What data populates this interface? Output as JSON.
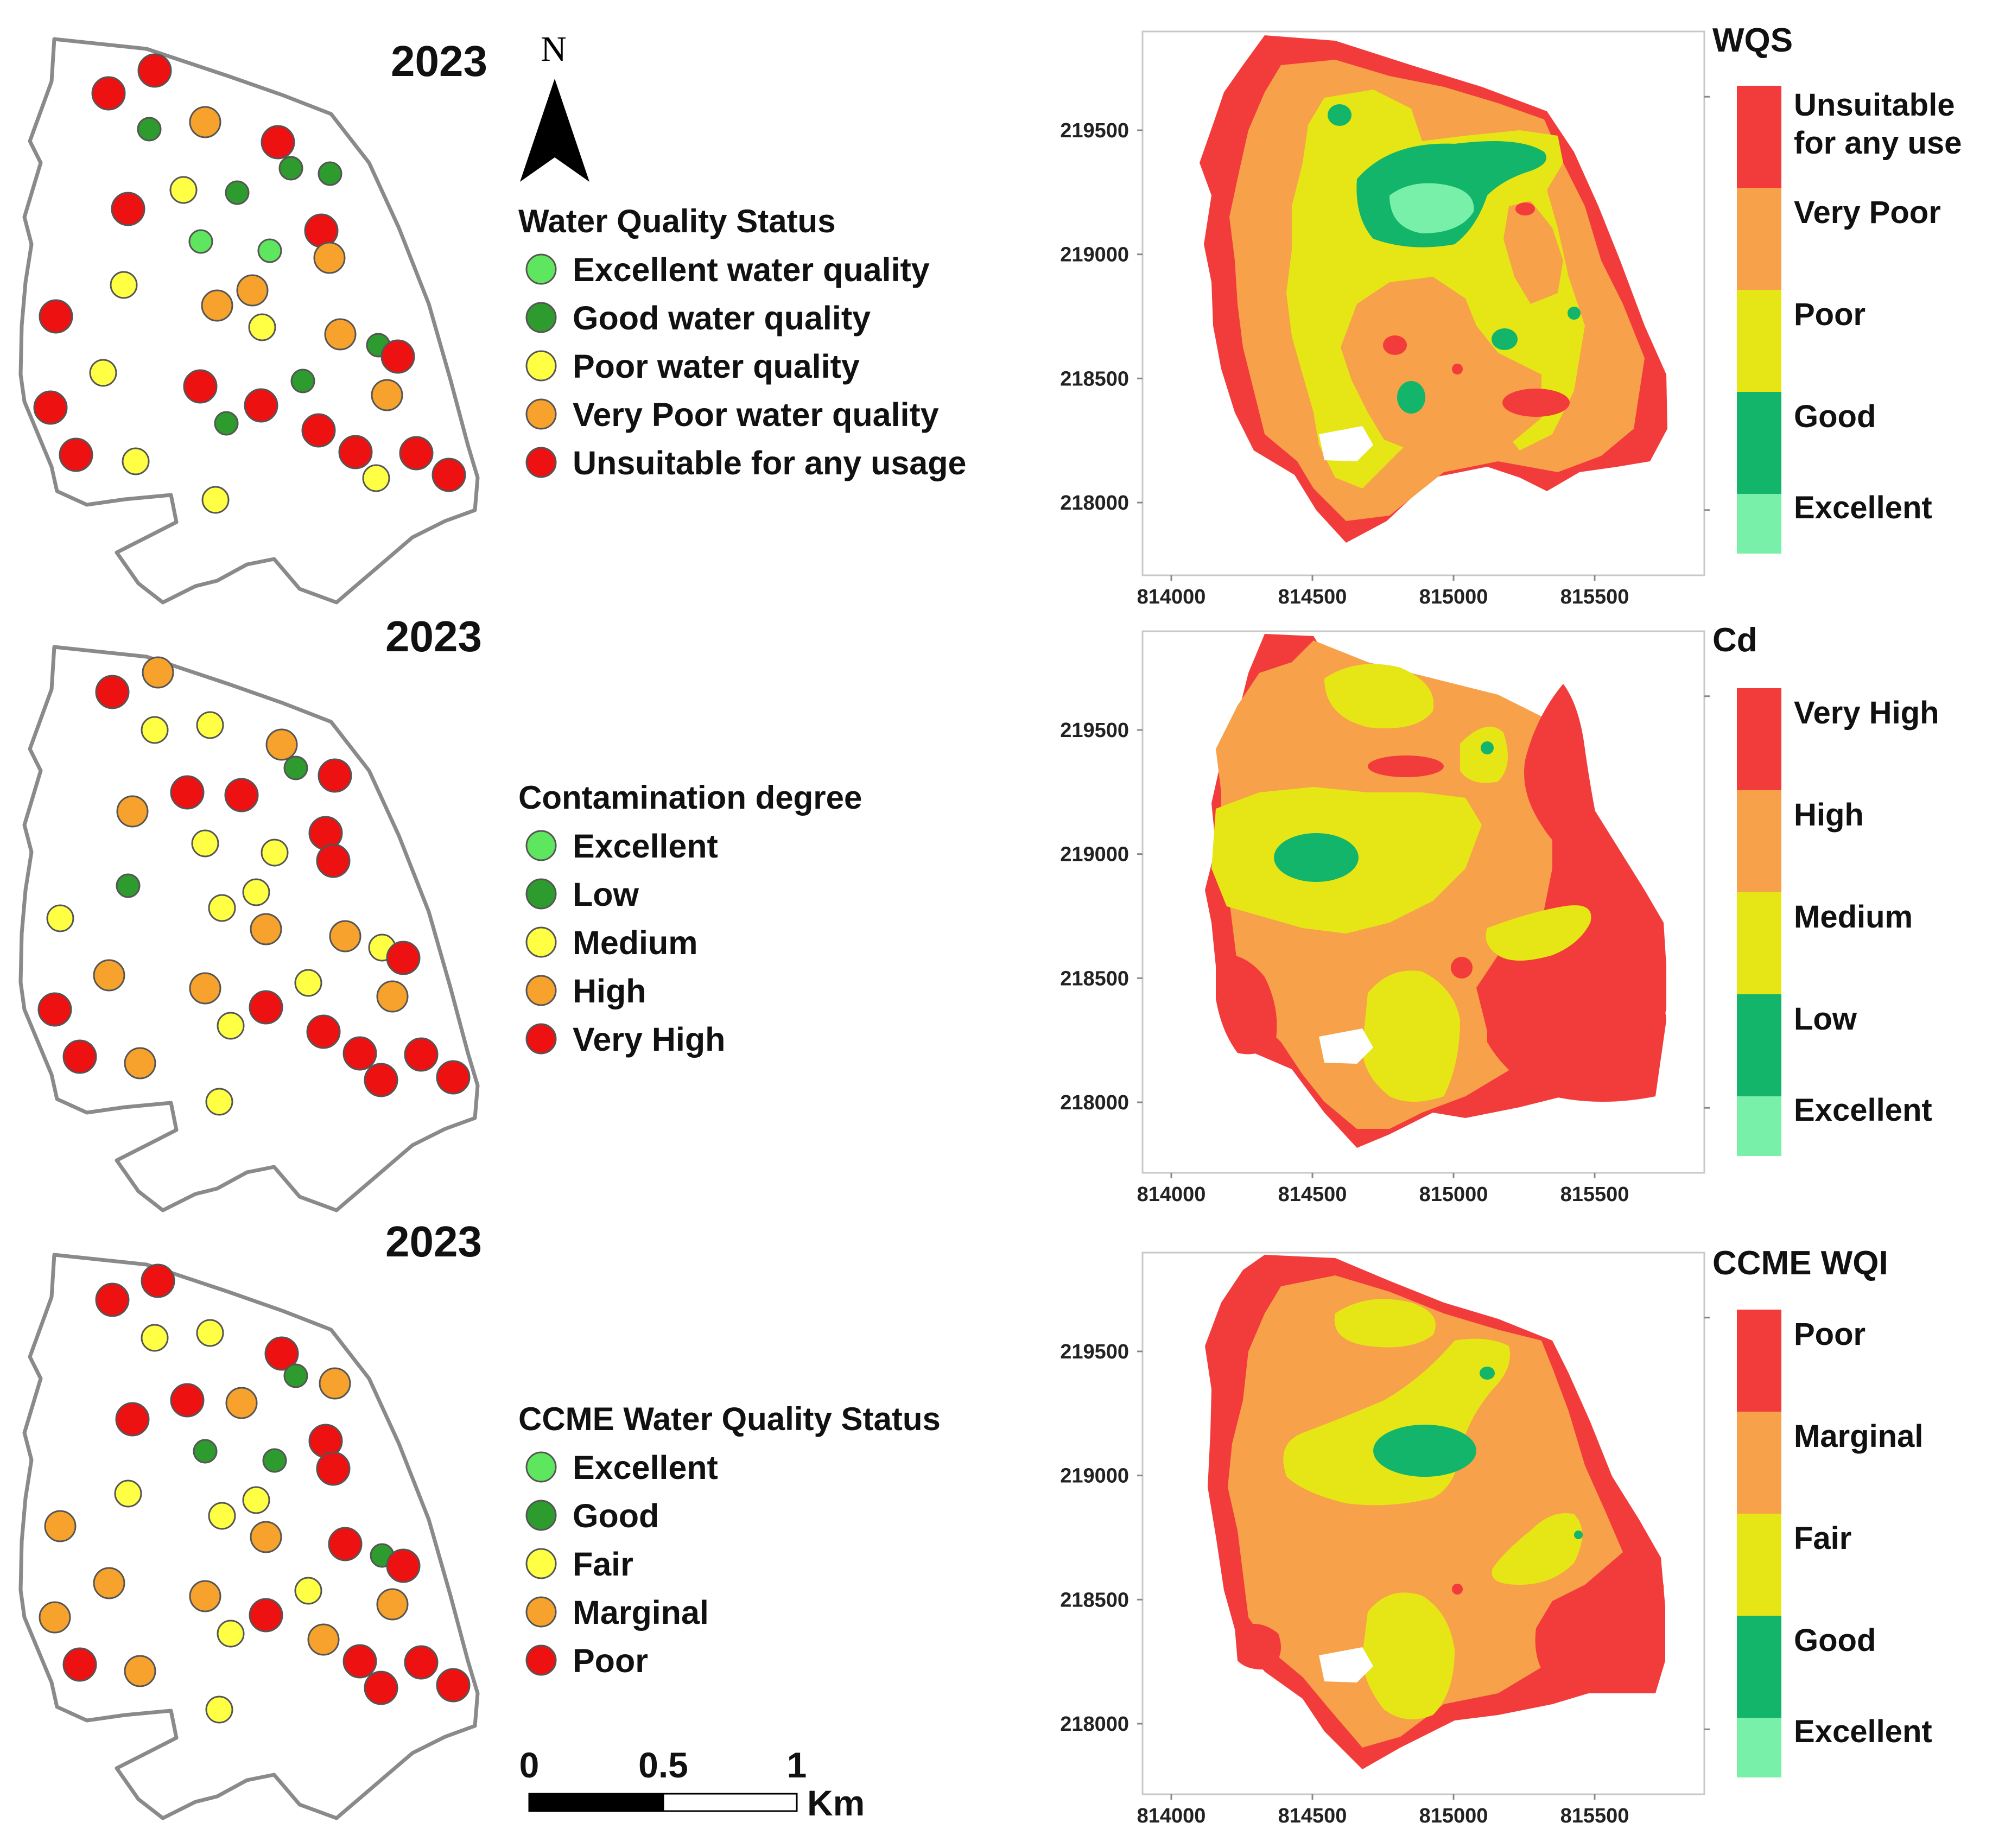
{
  "colors": {
    "excellent": "#5ee65e",
    "good": "#2e9b2e",
    "poor_yellow": "#ffff44",
    "very_poor": "#f6a22c",
    "unsuitable": "#ee1111",
    "ramp_red": "#f23c3c",
    "ramp_orange": "#f7a14a",
    "ramp_yellow": "#e6e617",
    "ramp_green": "#12b56a",
    "ramp_light": "#79f0a9"
  },
  "north_arrow": {
    "label": "N"
  },
  "scale_bar": {
    "labels": [
      "0",
      "0.5",
      "1"
    ],
    "unit": "Km"
  },
  "map_panels": [
    {
      "year": "2023",
      "legend_title": "Water Quality Status",
      "legend": [
        {
          "label": "Excellent water quality",
          "class": "excellent"
        },
        {
          "label": "Good water quality",
          "class": "good"
        },
        {
          "label": "Poor water quality",
          "class": "poor_yellow"
        },
        {
          "label": "Very Poor water quality",
          "class": "very_poor"
        },
        {
          "label": "Unsuitable for any usage",
          "class": "unsuitable"
        }
      ]
    },
    {
      "year": "2023",
      "legend_title": "Contamination degree",
      "legend": [
        {
          "label": "Excellent",
          "class": "excellent"
        },
        {
          "label": "Low",
          "class": "good"
        },
        {
          "label": "Medium",
          "class": "poor_yellow"
        },
        {
          "label": "High",
          "class": "very_poor"
        },
        {
          "label": "Very High",
          "class": "unsuitable"
        }
      ]
    },
    {
      "year": "2023",
      "legend_title": "CCME Water Quality Status",
      "legend": [
        {
          "label": "Excellent",
          "class": "excellent"
        },
        {
          "label": "Good",
          "class": "good"
        },
        {
          "label": "Fair",
          "class": "poor_yellow"
        },
        {
          "label": "Marginal",
          "class": "very_poor"
        },
        {
          "label": "Poor",
          "class": "unsuitable"
        }
      ]
    }
  ],
  "interpolation_panels": [
    {
      "title": "WQS",
      "classes": [
        {
          "label": "Unsuitable for any use",
          "lines": [
            "Unsuitable",
            "for any use"
          ]
        },
        {
          "label": "Very Poor"
        },
        {
          "label": "Poor"
        },
        {
          "label": "Good"
        },
        {
          "label": "Excellent"
        }
      ]
    },
    {
      "title": "Cd",
      "classes": [
        {
          "label": "Very High"
        },
        {
          "label": "High"
        },
        {
          "label": "Medium"
        },
        {
          "label": "Low"
        },
        {
          "label": "Excellent"
        }
      ]
    },
    {
      "title": "CCME WQI",
      "classes": [
        {
          "label": "Poor"
        },
        {
          "label": "Marginal"
        },
        {
          "label": "Fair"
        },
        {
          "label": "Good"
        },
        {
          "label": "Excellent"
        }
      ]
    }
  ],
  "axes": {
    "x_ticks": [
      "814000",
      "814500",
      "815000",
      "815500"
    ],
    "y_ticks": [
      "219500",
      "219000",
      "218500",
      "218000"
    ]
  }
}
